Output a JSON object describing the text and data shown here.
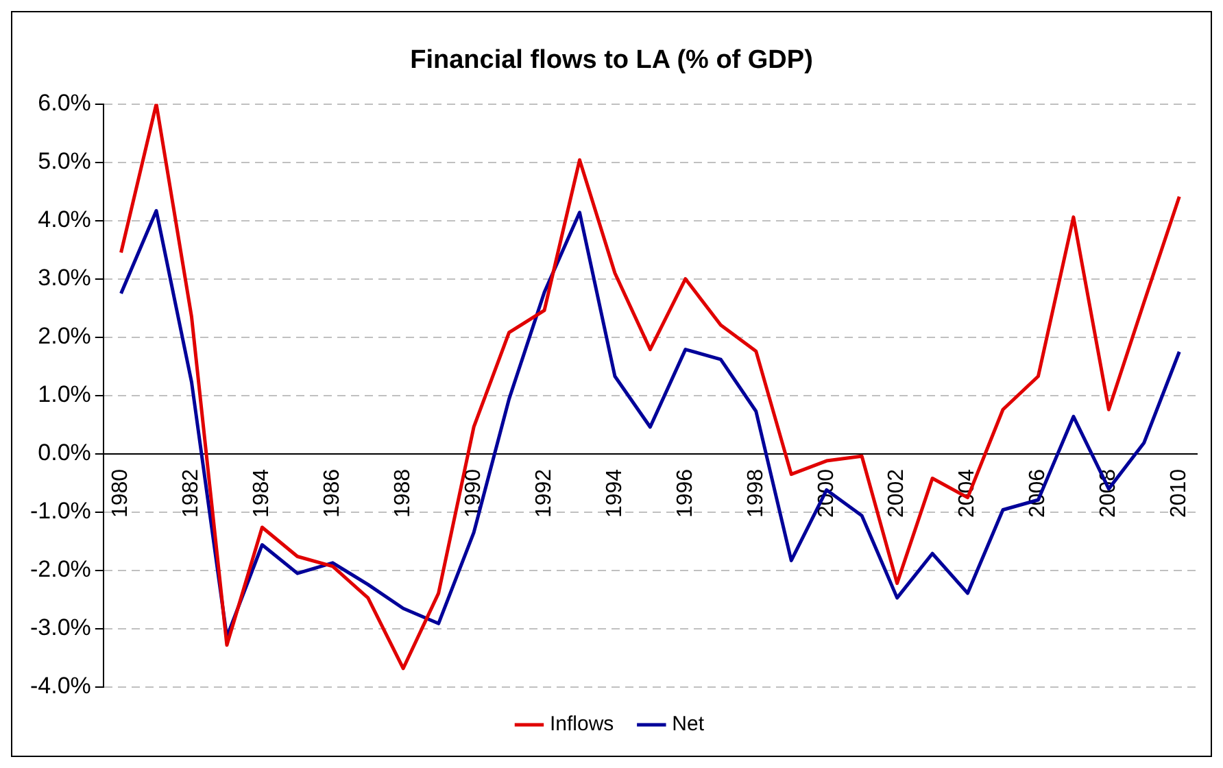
{
  "chart_data": {
    "type": "line",
    "title": "Financial flows to LA (% of GDP)",
    "categories": [
      "1980",
      null,
      "1982",
      null,
      "1984",
      null,
      "1986",
      null,
      "1988",
      null,
      "1990",
      null,
      "1992",
      null,
      "1994",
      null,
      "1996",
      null,
      "1998",
      null,
      "2000",
      null,
      "2002",
      null,
      "2004",
      null,
      "2006",
      null,
      "2008",
      null,
      "2010"
    ],
    "series": [
      {
        "name": "Inflows",
        "color": "#e00000",
        "values": [
          3.45,
          6.0,
          2.35,
          -3.28,
          -1.26,
          -1.76,
          -1.93,
          -2.47,
          -3.68,
          -2.39,
          0.46,
          2.08,
          2.46,
          5.04,
          3.1,
          1.79,
          3.0,
          2.21,
          1.76,
          -0.35,
          -0.12,
          -0.04,
          -2.22,
          -0.42,
          -0.75,
          0.76,
          1.33,
          4.06,
          0.76,
          2.6,
          4.41
        ]
      },
      {
        "name": "Net",
        "color": "#000099",
        "values": [
          2.75,
          4.17,
          1.23,
          -3.14,
          -1.56,
          -2.05,
          -1.87,
          -2.24,
          -2.65,
          -2.91,
          -1.35,
          0.94,
          2.77,
          4.14,
          1.33,
          0.46,
          1.79,
          1.62,
          0.73,
          -1.83,
          -0.62,
          -1.06,
          -2.47,
          -1.71,
          -2.39,
          -0.96,
          -0.79,
          0.64,
          -0.6,
          0.19,
          1.75
        ]
      }
    ],
    "ylim": [
      -4,
      6
    ],
    "yticks": [
      {
        "value": -4,
        "label": "-4.0%"
      },
      {
        "value": -3,
        "label": "-3.0%"
      },
      {
        "value": -2,
        "label": "-2.0%"
      },
      {
        "value": -1,
        "label": "-1.0%"
      },
      {
        "value": 0,
        "label": "0.0%"
      },
      {
        "value": 1,
        "label": "1.0%"
      },
      {
        "value": 2,
        "label": "2.0%"
      },
      {
        "value": 3,
        "label": "3.0%"
      },
      {
        "value": 4,
        "label": "4.0%"
      },
      {
        "value": 5,
        "label": "5.0%"
      },
      {
        "value": 6,
        "label": "6.0%"
      }
    ],
    "grid": "y",
    "legend": "bottom",
    "marker": "none",
    "line_style": "solid"
  }
}
